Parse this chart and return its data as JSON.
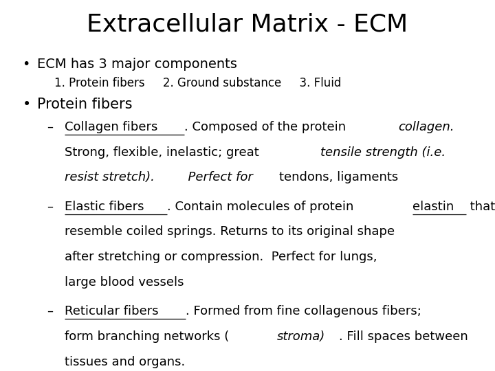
{
  "title": "Extracellular Matrix - ECM",
  "bg_color": "#ffffff",
  "text_color": "#000000",
  "title_fontsize": 26,
  "body_fontsize": 13,
  "sub_fontsize": 12,
  "bullet2_fontsize": 15,
  "bullet1_text": "ECM has 3 major components",
  "sub1_text": "1. Protein fibers     2. Ground substance     3. Fluid",
  "bullet2_text": "Protein fibers",
  "figwidth": 7.2,
  "figheight": 5.4,
  "dpi": 100
}
